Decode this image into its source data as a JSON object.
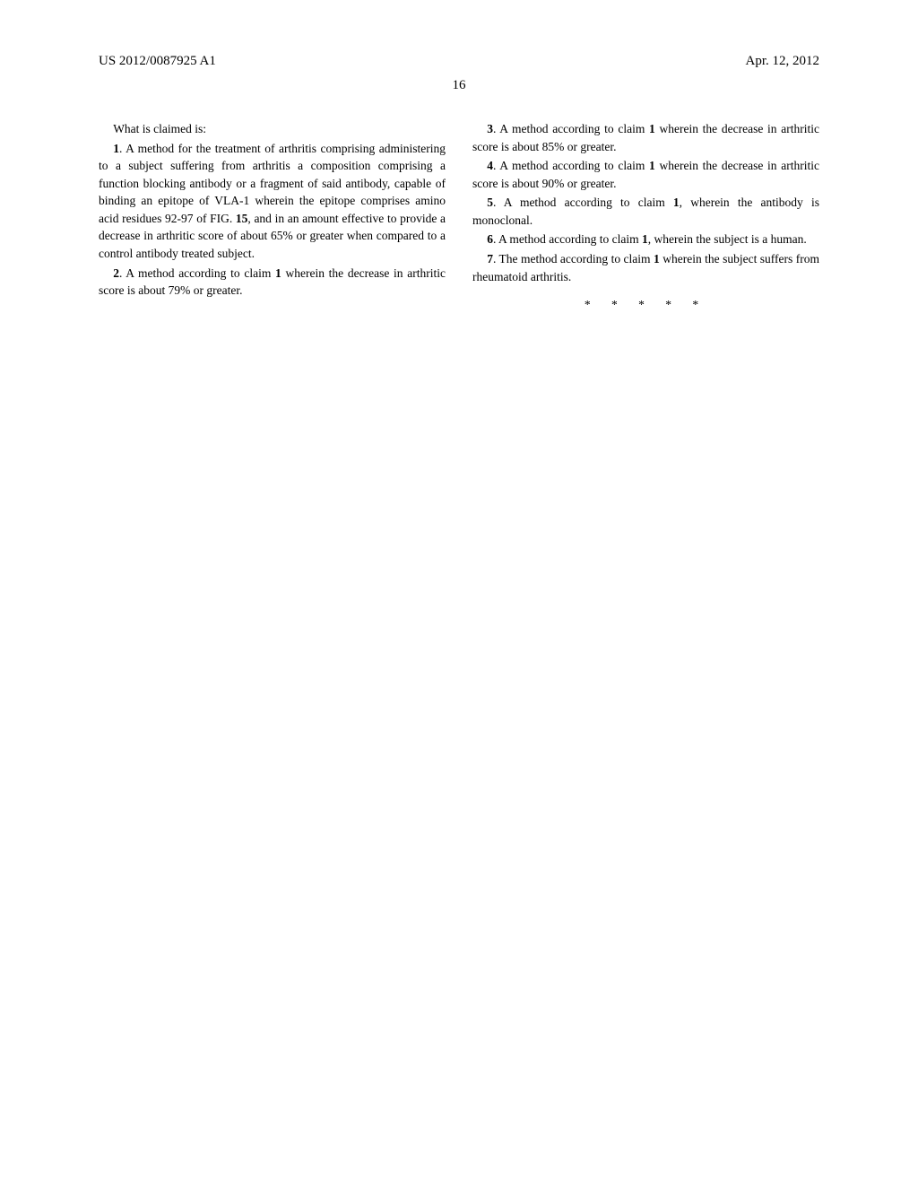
{
  "header": {
    "publication_id": "US 2012/0087925 A1",
    "date": "Apr. 12, 2012"
  },
  "page_number": "16",
  "claims_intro": "What is claimed is:",
  "left_column": {
    "claim1": {
      "num": "1",
      "text_before_fig": ". A method for the treatment of arthritis comprising administering to a subject suffering from arthritis a composition comprising a function blocking antibody or a fragment of said antibody, capable of binding an epitope of VLA-1 wherein the epitope comprises amino acid residues 92-97 of FIG. ",
      "fig_num": "15",
      "text_after_fig": ", and in an amount effective to provide a decrease in arthritic score of about 65% or greater when compared to a control antibody treated subject."
    },
    "claim2": {
      "num": "2",
      "ref_num": "1",
      "text_before_ref": ". A method according to claim ",
      "text_after_ref": " wherein the decrease in arthritic score is about 79% or greater."
    }
  },
  "right_column": {
    "claim3": {
      "num": "3",
      "ref_num": "1",
      "text_before_ref": ". A method according to claim ",
      "text_after_ref": " wherein the decrease in arthritic score is about 85% or greater."
    },
    "claim4": {
      "num": "4",
      "ref_num": "1",
      "text_before_ref": ". A method according to claim ",
      "text_after_ref": " wherein the decrease in arthritic score is about 90% or greater."
    },
    "claim5": {
      "num": "5",
      "ref_num": "1",
      "text_before_ref": ". A method according to claim ",
      "text_after_ref": ", wherein the antibody is monoclonal."
    },
    "claim6": {
      "num": "6",
      "ref_num": "1",
      "text_before_ref": ". A method according to claim ",
      "text_after_ref": ", wherein the subject is a human."
    },
    "claim7": {
      "num": "7",
      "ref_num": "1",
      "text_before_ref": ". The method according to claim ",
      "text_after_ref": " wherein the subject suffers from rheumatoid arthritis."
    }
  },
  "end_marks": "*   *   *   *   *"
}
